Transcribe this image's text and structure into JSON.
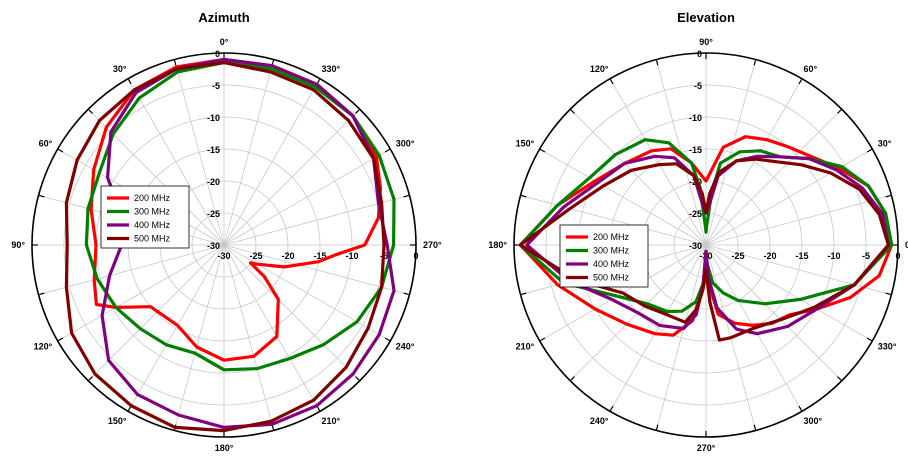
{
  "chart_data": [
    {
      "type": "polar-line",
      "title": "Azimuth",
      "angle_labels": [
        {
          "deg": 0,
          "label": "0°"
        },
        {
          "deg": 30,
          "label": "30°"
        },
        {
          "deg": 60,
          "label": "60°"
        },
        {
          "deg": 90,
          "label": "90°"
        },
        {
          "deg": 120,
          "label": "120°"
        },
        {
          "deg": 150,
          "label": "150°"
        },
        {
          "deg": 180,
          "label": "180°"
        },
        {
          "deg": 210,
          "label": "210°"
        },
        {
          "deg": 240,
          "label": "240°"
        },
        {
          "deg": 270,
          "label": "270°"
        },
        {
          "deg": 300,
          "label": "300°"
        },
        {
          "deg": 330,
          "label": "330°"
        }
      ],
      "angle_direction": "counterclockwise",
      "zero_at": "top",
      "radial_range": [
        -30,
        0
      ],
      "radial_ticks": [
        0,
        -5,
        -10,
        -15,
        -20,
        -25,
        -30
      ],
      "radial_tick_labels": [
        "0",
        "-5",
        "-10",
        "-15",
        "-20",
        "-25",
        "-30"
      ],
      "legend": {
        "position": "center-left",
        "entries": [
          "200 MHz",
          "300 MHz",
          "400 MHz",
          "500 MHz"
        ]
      },
      "series": [
        {
          "name": "200 MHz",
          "color": "#ff0000",
          "angles": [
            0,
            15,
            30,
            45,
            60,
            75,
            90,
            105,
            115,
            120,
            130,
            150,
            165,
            180,
            195,
            210,
            225,
            232,
            236,
            240,
            250,
            260,
            265,
            270,
            280,
            290,
            300,
            315,
            330,
            345,
            360
          ],
          "values": [
            -1,
            -1.2,
            -2,
            -4,
            -6.5,
            -8.5,
            -10,
            -9,
            -8,
            -10.5,
            -15,
            -15.5,
            -13.5,
            -12,
            -12,
            -13.5,
            -18,
            -22,
            -25,
            -24,
            -20,
            -15,
            -12.5,
            -8,
            -5.5,
            -4,
            -2.5,
            -1.5,
            -1,
            -1,
            -1
          ]
        },
        {
          "name": "300 MHz",
          "color": "#008000",
          "angles": [
            0,
            15,
            30,
            45,
            60,
            75,
            90,
            105,
            120,
            135,
            150,
            165,
            180,
            195,
            210,
            225,
            240,
            255,
            270,
            285,
            300,
            315,
            330,
            345,
            360
          ],
          "values": [
            -1.5,
            -2,
            -3.5,
            -5.5,
            -7.5,
            -8,
            -8.5,
            -9.5,
            -10.5,
            -11.5,
            -12,
            -12.5,
            -10.5,
            -10,
            -9.5,
            -8,
            -6,
            -4.5,
            -3.5,
            -2.5,
            -2,
            -1.5,
            -1.5,
            -1.5,
            -1.5
          ]
        },
        {
          "name": "400 MHz",
          "color": "#800080",
          "angles": [
            0,
            15,
            30,
            45,
            60,
            70,
            80,
            90,
            105,
            120,
            135,
            150,
            165,
            180,
            195,
            210,
            225,
            240,
            255,
            270,
            285,
            300,
            315,
            330,
            345,
            360
          ],
          "values": [
            -1,
            -1.5,
            -2.5,
            -5,
            -9,
            -12.5,
            -14,
            -14,
            -11.5,
            -8,
            -4.5,
            -3,
            -2.5,
            -1.5,
            -1,
            -1,
            -1.5,
            -2,
            -2.5,
            -4.5,
            -5,
            -3,
            -1.5,
            -1,
            -1,
            -1
          ]
        },
        {
          "name": "500 MHz",
          "color": "#800000",
          "angles": [
            0,
            15,
            30,
            45,
            60,
            75,
            90,
            105,
            120,
            135,
            150,
            165,
            180,
            195,
            210,
            225,
            240,
            255,
            270,
            285,
            300,
            315,
            330,
            345,
            360
          ],
          "values": [
            -1.5,
            -1.5,
            -2,
            -2.5,
            -3.5,
            -4.5,
            -5.5,
            -4.5,
            -2.5,
            -1.5,
            -1,
            -0.5,
            -1,
            -1.5,
            -2,
            -3,
            -4,
            -4.5,
            -5,
            -4.5,
            -3,
            -2.5,
            -2,
            -2,
            -1.5
          ]
        }
      ]
    },
    {
      "type": "polar-line",
      "title": "Elevation",
      "angle_labels": [
        {
          "deg": 0,
          "label": "0°"
        },
        {
          "deg": 30,
          "label": "30°"
        },
        {
          "deg": 60,
          "label": "60°"
        },
        {
          "deg": 90,
          "label": "90°"
        },
        {
          "deg": 120,
          "label": "120°"
        },
        {
          "deg": 150,
          "label": "150°"
        },
        {
          "deg": 180,
          "label": "180°"
        },
        {
          "deg": 210,
          "label": "210°"
        },
        {
          "deg": 240,
          "label": "240°"
        },
        {
          "deg": 270,
          "label": "270°"
        },
        {
          "deg": 300,
          "label": "300°"
        },
        {
          "deg": 330,
          "label": "330°"
        }
      ],
      "angle_direction": "counterclockwise",
      "zero_at": "right",
      "radial_range": [
        -30,
        0
      ],
      "radial_ticks": [
        0,
        -5,
        -10,
        -15,
        -20,
        -25,
        -30
      ],
      "radial_tick_labels": [
        "0",
        "-5",
        "-10",
        "-15",
        "-20",
        "-25",
        "-30"
      ],
      "legend": {
        "position": "center-left",
        "entries": [
          "200 MHz",
          "300 MHz",
          "400 MHz",
          "500 MHz"
        ]
      },
      "series": [
        {
          "name": "200 MHz",
          "color": "#ff0000",
          "angles": [
            0,
            10,
            20,
            30,
            40,
            50,
            60,
            70,
            80,
            90,
            100,
            110,
            120,
            135,
            150,
            165,
            180,
            195,
            210,
            225,
            240,
            250,
            260,
            266,
            270,
            274,
            280,
            290,
            300,
            310,
            320,
            330,
            340,
            350,
            360
          ],
          "values": [
            -1,
            -1.5,
            -3,
            -6,
            -8.5,
            -10,
            -11,
            -12,
            -14.5,
            -20,
            -17,
            -14,
            -13,
            -12,
            -10,
            -6,
            -1,
            -6,
            -10,
            -12.5,
            -14,
            -15,
            -18,
            -24,
            -29,
            -24,
            -19,
            -17,
            -15.5,
            -14,
            -13,
            -10,
            -6,
            -2.5,
            -1
          ]
        },
        {
          "name": "300 MHz",
          "color": "#008000",
          "angles": [
            0,
            10,
            20,
            30,
            40,
            50,
            60,
            70,
            80,
            84,
            88,
            90,
            92,
            96,
            100,
            110,
            120,
            135,
            150,
            165,
            180,
            195,
            210,
            225,
            240,
            250,
            260,
            266,
            270,
            274,
            280,
            290,
            300,
            315,
            330,
            345,
            360
          ],
          "values": [
            -1,
            -1.5,
            -3,
            -5.5,
            -9,
            -12,
            -13,
            -14.5,
            -17,
            -22,
            -27,
            -28,
            -27,
            -21,
            -17,
            -13,
            -11,
            -10,
            -9,
            -6,
            -1,
            -7,
            -14,
            -17,
            -18,
            -19,
            -21,
            -24,
            -29,
            -27,
            -24,
            -22,
            -20,
            -17,
            -13,
            -6,
            -1
          ]
        },
        {
          "name": "400 MHz",
          "color": "#800080",
          "angles": [
            0,
            10,
            20,
            30,
            40,
            50,
            60,
            70,
            80,
            86,
            90,
            94,
            100,
            110,
            120,
            135,
            150,
            165,
            180,
            195,
            210,
            225,
            240,
            255,
            262,
            266,
            270,
            274,
            280,
            290,
            300,
            315,
            330,
            345,
            360
          ],
          "values": [
            -1.5,
            -2,
            -4,
            -6.5,
            -9,
            -12,
            -14,
            -16,
            -19,
            -24,
            -25,
            -24,
            -19,
            -15.5,
            -14,
            -12,
            -10.5,
            -7,
            -2,
            -8,
            -13,
            -15,
            -15.5,
            -16.5,
            -19,
            -24,
            -29,
            -25,
            -20,
            -16,
            -14,
            -12,
            -10,
            -6,
            -1.5
          ]
        },
        {
          "name": "500 MHz",
          "color": "#800000",
          "angles": [
            0,
            10,
            20,
            30,
            40,
            50,
            60,
            70,
            80,
            86,
            90,
            94,
            100,
            110,
            120,
            135,
            150,
            165,
            180,
            195,
            210,
            225,
            240,
            255,
            262,
            266,
            270,
            274,
            278,
            285,
            300,
            315,
            330,
            345,
            360
          ],
          "values": [
            -1.5,
            -2.5,
            -4.5,
            -7.5,
            -10.5,
            -13,
            -14.5,
            -16,
            -18.5,
            -22,
            -25,
            -22,
            -19,
            -16.5,
            -15.5,
            -13.5,
            -11.5,
            -8,
            -1,
            -9,
            -15,
            -16.5,
            -17.5,
            -17.5,
            -20,
            -23,
            -26,
            -21,
            -15,
            -15,
            -15,
            -13.5,
            -10.5,
            -6,
            -1.5
          ]
        }
      ]
    }
  ]
}
